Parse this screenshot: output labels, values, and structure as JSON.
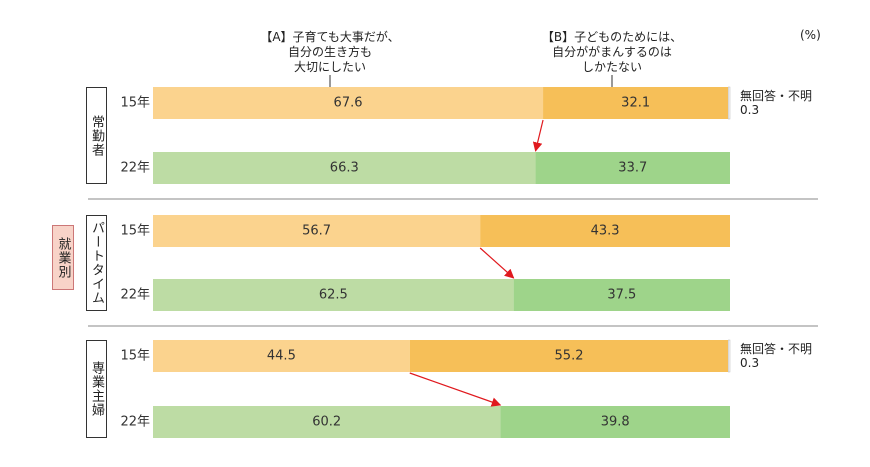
{
  "chart_data": {
    "type": "stacked-bar-h",
    "unit_label": "(%)",
    "side_label": "就業別",
    "xlim": [
      0,
      100
    ],
    "groups": [
      {
        "name": "常勤者",
        "categories": [
          "15年",
          "22年"
        ]
      },
      {
        "name": "パートタイム",
        "categories": [
          "15年",
          "22年"
        ]
      },
      {
        "name": "専業主婦",
        "categories": [
          "15年",
          "22年"
        ]
      }
    ],
    "series": [
      {
        "name": "【A】子育ても大事だが、\n自分の生き方も\n大切にしたい",
        "colors": [
          "#fbd38e",
          "#bddca4"
        ],
        "values": [
          [
            67.6,
            66.3
          ],
          [
            56.7,
            62.5
          ],
          [
            44.5,
            60.2
          ]
        ]
      },
      {
        "name": "【B】子どものためには、\n自分ががまんするのは\nしかたない",
        "colors": [
          "#f6bf58",
          "#9ed48a"
        ],
        "values": [
          [
            32.1,
            33.7
          ],
          [
            43.3,
            37.5
          ],
          [
            55.2,
            39.8
          ]
        ]
      },
      {
        "name": "無回答・不明",
        "colors": [
          "#f4f4f4",
          "#f4f4f4"
        ],
        "values": [
          [
            0.3,
            null
          ],
          [
            null,
            null
          ],
          [
            0.3,
            null
          ]
        ]
      }
    ]
  }
}
